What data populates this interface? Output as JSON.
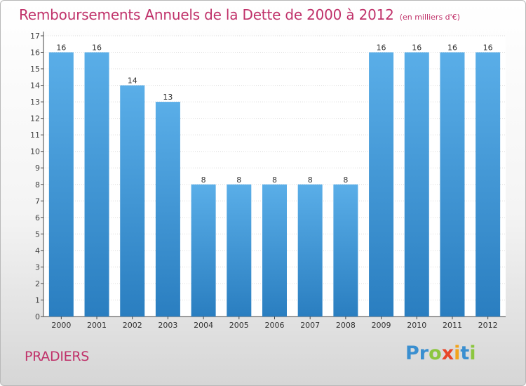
{
  "chart_data": {
    "type": "bar",
    "title": "Remboursements Annuels de la Dette de 2000 à 2012",
    "unit_label": "(en milliers d'€)",
    "categories": [
      "2000",
      "2001",
      "2002",
      "2003",
      "2004",
      "2005",
      "2006",
      "2007",
      "2008",
      "2009",
      "2010",
      "2011",
      "2012"
    ],
    "values": [
      16,
      16,
      14,
      13,
      8,
      8,
      8,
      8,
      8,
      16,
      16,
      16,
      16
    ],
    "data_labels": [
      "16",
      "16",
      "14",
      "13",
      "8",
      "8",
      "8",
      "8",
      "8",
      "16",
      "16",
      "16",
      "16"
    ],
    "ylim": [
      0,
      17
    ],
    "yticks": [
      "0",
      "1",
      "2",
      "3",
      "4",
      "5",
      "6",
      "7",
      "8",
      "9",
      "10",
      "11",
      "12",
      "13",
      "14",
      "15",
      "16",
      "17"
    ],
    "grid": true,
    "bar_color_top": "#5aaee8",
    "bar_color_bottom": "#2a7ec0",
    "title_color": "#c0326a"
  },
  "footer": {
    "town": "PRADIERS",
    "brand_letters": [
      {
        "ch": "P",
        "color": "#3a8fd0"
      },
      {
        "ch": "r",
        "color": "#3a8fd0"
      },
      {
        "ch": "o",
        "color": "#8cc63f"
      },
      {
        "ch": "x",
        "color": "#e8462a"
      },
      {
        "ch": "i",
        "color": "#f2a31b"
      },
      {
        "ch": "t",
        "color": "#3a8fd0"
      },
      {
        "ch": "i",
        "color": "#8cc63f"
      }
    ]
  }
}
